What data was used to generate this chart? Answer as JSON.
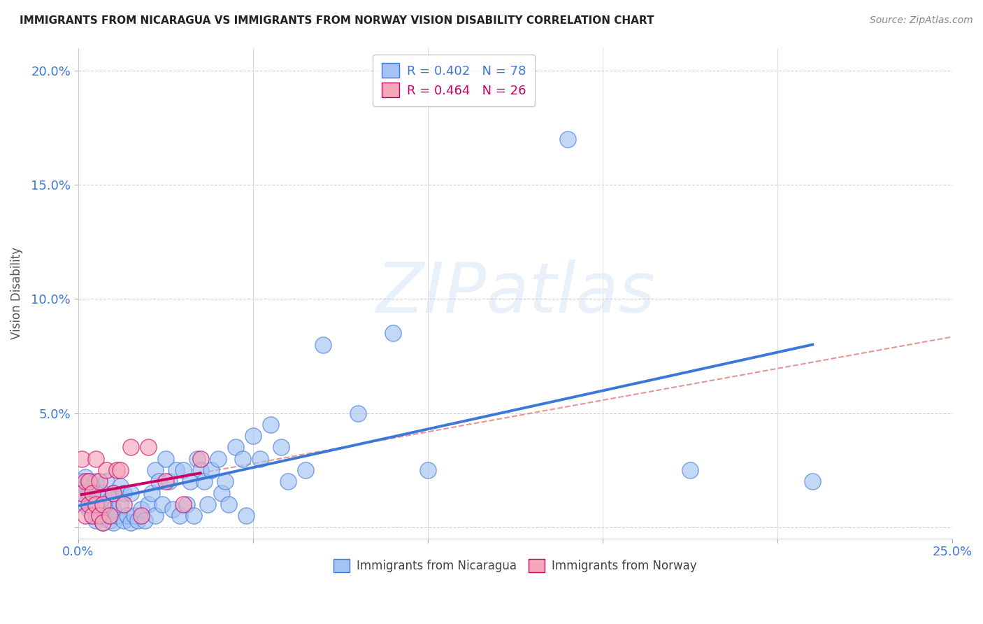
{
  "title": "IMMIGRANTS FROM NICARAGUA VS IMMIGRANTS FROM NORWAY VISION DISABILITY CORRELATION CHART",
  "source": "Source: ZipAtlas.com",
  "ylabel": "Vision Disability",
  "xlim": [
    0.0,
    0.25
  ],
  "ylim": [
    -0.005,
    0.21
  ],
  "nicaragua_color": "#a4c2f4",
  "norway_color": "#f4a7b9",
  "nicaragua_line_color": "#3c78d8",
  "norway_line_color": "#cc0066",
  "dashed_line_color": "#e06666",
  "R_nicaragua": 0.402,
  "N_nicaragua": 78,
  "R_norway": 0.464,
  "N_norway": 26,
  "watermark_text": "ZIPatlas",
  "nicaragua_x": [
    0.001,
    0.001,
    0.002,
    0.002,
    0.002,
    0.003,
    0.003,
    0.003,
    0.004,
    0.004,
    0.004,
    0.005,
    0.005,
    0.005,
    0.006,
    0.006,
    0.007,
    0.007,
    0.007,
    0.008,
    0.008,
    0.009,
    0.009,
    0.01,
    0.01,
    0.01,
    0.011,
    0.012,
    0.012,
    0.013,
    0.013,
    0.014,
    0.015,
    0.015,
    0.016,
    0.017,
    0.018,
    0.019,
    0.02,
    0.021,
    0.022,
    0.022,
    0.023,
    0.024,
    0.025,
    0.026,
    0.027,
    0.028,
    0.029,
    0.03,
    0.031,
    0.032,
    0.033,
    0.034,
    0.035,
    0.036,
    0.037,
    0.038,
    0.04,
    0.041,
    0.042,
    0.043,
    0.045,
    0.047,
    0.048,
    0.05,
    0.052,
    0.055,
    0.058,
    0.06,
    0.065,
    0.07,
    0.08,
    0.09,
    0.1,
    0.14,
    0.175,
    0.21
  ],
  "nicaragua_y": [
    0.015,
    0.02,
    0.01,
    0.018,
    0.022,
    0.008,
    0.015,
    0.02,
    0.005,
    0.012,
    0.018,
    0.003,
    0.01,
    0.02,
    0.005,
    0.015,
    0.002,
    0.008,
    0.015,
    0.005,
    0.02,
    0.003,
    0.012,
    0.002,
    0.008,
    0.015,
    0.005,
    0.01,
    0.018,
    0.003,
    0.015,
    0.005,
    0.002,
    0.015,
    0.005,
    0.003,
    0.008,
    0.003,
    0.01,
    0.015,
    0.025,
    0.005,
    0.02,
    0.01,
    0.03,
    0.02,
    0.008,
    0.025,
    0.005,
    0.025,
    0.01,
    0.02,
    0.005,
    0.03,
    0.025,
    0.02,
    0.01,
    0.025,
    0.03,
    0.015,
    0.02,
    0.01,
    0.035,
    0.03,
    0.005,
    0.04,
    0.03,
    0.045,
    0.035,
    0.02,
    0.025,
    0.08,
    0.05,
    0.085,
    0.025,
    0.17,
    0.025,
    0.02
  ],
  "norway_x": [
    0.001,
    0.001,
    0.002,
    0.002,
    0.003,
    0.003,
    0.004,
    0.004,
    0.005,
    0.005,
    0.006,
    0.006,
    0.007,
    0.007,
    0.008,
    0.009,
    0.01,
    0.011,
    0.012,
    0.013,
    0.015,
    0.018,
    0.02,
    0.025,
    0.03,
    0.035
  ],
  "norway_y": [
    0.015,
    0.03,
    0.005,
    0.02,
    0.01,
    0.02,
    0.005,
    0.015,
    0.01,
    0.03,
    0.005,
    0.02,
    0.002,
    0.01,
    0.025,
    0.005,
    0.015,
    0.025,
    0.025,
    0.01,
    0.035,
    0.005,
    0.035,
    0.02,
    0.01,
    0.03
  ],
  "legend_r_nic_color": "#3c78d8",
  "legend_n_nic_color": "#3c78d8",
  "legend_r_nor_color": "#cc0066",
  "legend_n_nor_color": "#cc0066"
}
